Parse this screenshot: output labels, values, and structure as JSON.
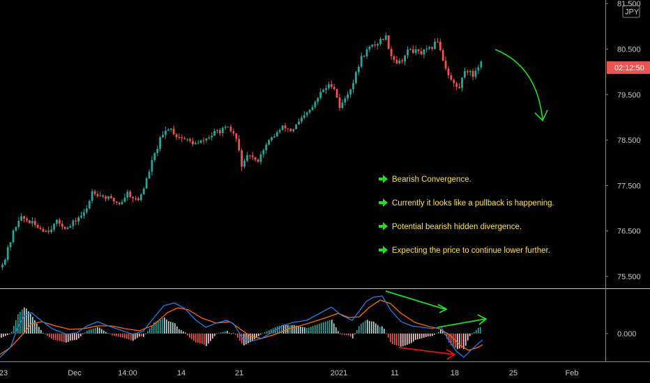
{
  "chart_data": {
    "type": "candlestick",
    "instrument_currency": "JPY",
    "countdown": "02:12:50",
    "price_axis": {
      "ticks": [
        "81.500",
        "80.500",
        "79.500",
        "78.500",
        "77.500",
        "76.500",
        "75.500"
      ],
      "range": [
        75.1,
        81.6
      ]
    },
    "time_axis": {
      "ticks": [
        "23",
        "Dec",
        "14:00",
        "14",
        "21",
        "2021",
        "11",
        "18",
        "25",
        "Feb"
      ]
    },
    "price_path": [
      [
        0,
        75.7
      ],
      [
        10,
        75.9
      ],
      [
        20,
        76.4
      ],
      [
        30,
        76.8
      ],
      [
        40,
        76.75
      ],
      [
        55,
        76.6
      ],
      [
        70,
        76.5
      ],
      [
        85,
        76.7
      ],
      [
        100,
        76.55
      ],
      [
        115,
        76.8
      ],
      [
        125,
        76.9
      ],
      [
        135,
        77.4
      ],
      [
        145,
        77.3
      ],
      [
        160,
        77.2
      ],
      [
        175,
        77.1
      ],
      [
        185,
        77.35
      ],
      [
        200,
        77.15
      ],
      [
        210,
        77.5
      ],
      [
        220,
        78.0
      ],
      [
        232,
        78.5
      ],
      [
        245,
        78.8
      ],
      [
        255,
        78.6
      ],
      [
        270,
        78.5
      ],
      [
        285,
        78.4
      ],
      [
        300,
        78.55
      ],
      [
        315,
        78.7
      ],
      [
        330,
        78.75
      ],
      [
        340,
        78.6
      ],
      [
        350,
        77.9
      ],
      [
        360,
        78.2
      ],
      [
        370,
        78.0
      ],
      [
        380,
        78.3
      ],
      [
        395,
        78.6
      ],
      [
        410,
        78.8
      ],
      [
        420,
        78.7
      ],
      [
        435,
        78.95
      ],
      [
        450,
        79.2
      ],
      [
        465,
        79.6
      ],
      [
        480,
        79.75
      ],
      [
        490,
        79.2
      ],
      [
        500,
        79.5
      ],
      [
        510,
        79.8
      ],
      [
        520,
        80.3
      ],
      [
        530,
        80.5
      ],
      [
        545,
        80.65
      ],
      [
        555,
        80.8
      ],
      [
        565,
        80.3
      ],
      [
        575,
        80.2
      ],
      [
        590,
        80.5
      ],
      [
        605,
        80.4
      ],
      [
        620,
        80.5
      ],
      [
        630,
        80.7
      ],
      [
        640,
        80.15
      ],
      [
        650,
        79.8
      ],
      [
        660,
        79.6
      ],
      [
        670,
        80.1
      ],
      [
        680,
        79.9
      ],
      [
        690,
        80.2
      ]
    ],
    "macd": {
      "zero_label": "0.000",
      "macd_line": [
        [
          0,
          -1.7
        ],
        [
          15,
          -1.0
        ],
        [
          25,
          0.4
        ],
        [
          35,
          1.3
        ],
        [
          45,
          1.5
        ],
        [
          60,
          0.9
        ],
        [
          75,
          0.35
        ],
        [
          95,
          -0.05
        ],
        [
          110,
          0.05
        ],
        [
          125,
          0.55
        ],
        [
          140,
          0.85
        ],
        [
          155,
          0.55
        ],
        [
          170,
          0.3
        ],
        [
          190,
          -0.05
        ],
        [
          205,
          0.15
        ],
        [
          220,
          1.1
        ],
        [
          235,
          2.0
        ],
        [
          250,
          2.2
        ],
        [
          265,
          1.8
        ],
        [
          280,
          1.0
        ],
        [
          295,
          0.45
        ],
        [
          310,
          0.75
        ],
        [
          325,
          0.95
        ],
        [
          335,
          0.7
        ],
        [
          348,
          -0.35
        ],
        [
          360,
          -0.55
        ],
        [
          375,
          -0.35
        ],
        [
          390,
          0.1
        ],
        [
          405,
          0.55
        ],
        [
          420,
          0.8
        ],
        [
          440,
          0.95
        ],
        [
          460,
          1.5
        ],
        [
          475,
          1.9
        ],
        [
          490,
          1.3
        ],
        [
          505,
          0.95
        ],
        [
          515,
          1.6
        ],
        [
          525,
          2.3
        ],
        [
          535,
          2.6
        ],
        [
          548,
          2.7
        ],
        [
          560,
          1.7
        ],
        [
          575,
          0.85
        ],
        [
          590,
          0.55
        ],
        [
          605,
          0.45
        ],
        [
          620,
          0.35
        ],
        [
          632,
          0.5
        ],
        [
          645,
          -0.6
        ],
        [
          655,
          -1.3
        ],
        [
          665,
          -1.7
        ],
        [
          675,
          -1.2
        ],
        [
          685,
          -0.75
        ],
        [
          692,
          -0.45
        ]
      ],
      "signal_line": [
        [
          0,
          -1.5
        ],
        [
          15,
          -1.0
        ],
        [
          30,
          -0.2
        ],
        [
          45,
          0.7
        ],
        [
          60,
          0.85
        ],
        [
          80,
          0.55
        ],
        [
          100,
          0.3
        ],
        [
          120,
          0.35
        ],
        [
          140,
          0.55
        ],
        [
          160,
          0.55
        ],
        [
          180,
          0.35
        ],
        [
          200,
          0.2
        ],
        [
          220,
          0.6
        ],
        [
          240,
          1.5
        ],
        [
          255,
          1.85
        ],
        [
          270,
          1.7
        ],
        [
          290,
          1.1
        ],
        [
          310,
          0.75
        ],
        [
          330,
          0.85
        ],
        [
          345,
          0.3
        ],
        [
          360,
          -0.2
        ],
        [
          375,
          -0.35
        ],
        [
          395,
          -0.05
        ],
        [
          415,
          0.35
        ],
        [
          440,
          0.7
        ],
        [
          465,
          1.1
        ],
        [
          485,
          1.45
        ],
        [
          500,
          1.15
        ],
        [
          515,
          1.2
        ],
        [
          530,
          1.9
        ],
        [
          545,
          2.4
        ],
        [
          560,
          2.15
        ],
        [
          575,
          1.45
        ],
        [
          595,
          0.8
        ],
        [
          615,
          0.5
        ],
        [
          630,
          0.35
        ],
        [
          645,
          -0.1
        ],
        [
          660,
          -0.85
        ],
        [
          672,
          -1.2
        ],
        [
          685,
          -1.0
        ],
        [
          692,
          -0.8
        ]
      ]
    },
    "annotations": [
      "Bearish Convergence.",
      "Currently it looks like a pullback is happening.",
      "Potential bearish hidden divergence.",
      "Expecting the price to continue lower further."
    ],
    "colors": {
      "up": "#26a69a",
      "down": "#ef5350",
      "macd_line": "#2a7de1",
      "signal_line": "#ff6d00",
      "annotation_text": "#ffe14d",
      "arrow_green": "#22dd22",
      "arrow_red": "#ee1111",
      "price_tag": "#ef5350"
    }
  }
}
